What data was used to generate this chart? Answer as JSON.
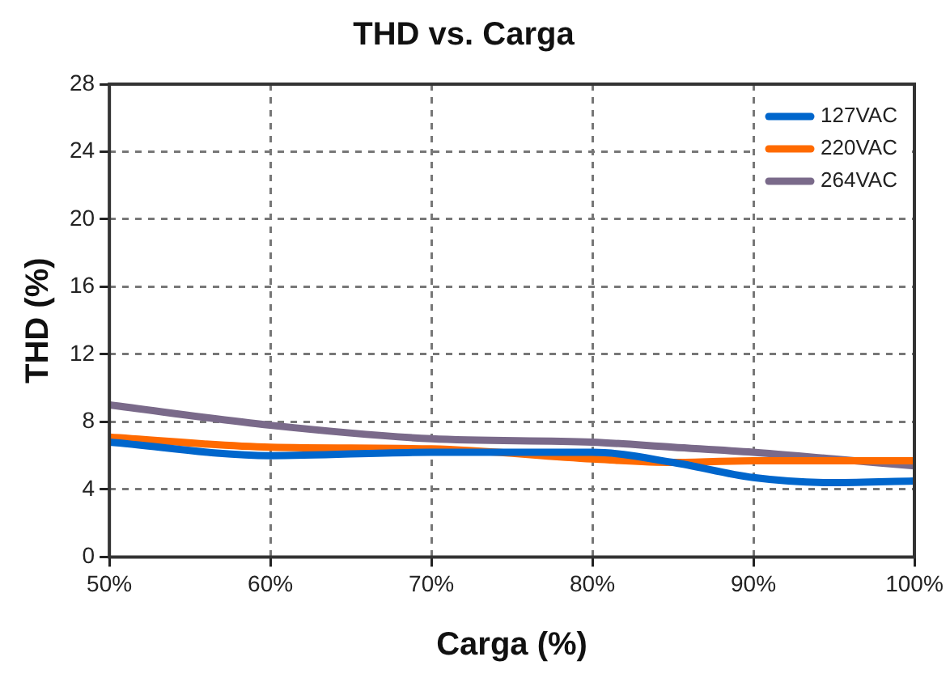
{
  "chart_data": {
    "type": "line",
    "title": "THD vs. Carga",
    "xlabel": "Carga (%)",
    "ylabel": "THD (%)",
    "x": [
      50,
      60,
      70,
      80,
      85,
      90,
      95,
      100
    ],
    "series": [
      {
        "name": "127VAC",
        "color": "#0066cc",
        "values": [
          6.8,
          6.0,
          6.2,
          6.2,
          5.6,
          4.7,
          4.4,
          4.5
        ]
      },
      {
        "name": "220VAC",
        "color": "#ff6a00",
        "values": [
          7.1,
          6.5,
          6.4,
          5.8,
          5.6,
          5.7,
          5.7,
          5.7
        ]
      },
      {
        "name": "264VAC",
        "color": "#7a6a8a",
        "values": [
          9.0,
          7.8,
          7.0,
          6.8,
          6.5,
          6.2,
          5.8,
          5.4
        ]
      }
    ],
    "xlim": [
      50,
      100
    ],
    "xticks": [
      {
        "value": 50,
        "label": "50%"
      },
      {
        "value": 60,
        "label": "60%"
      },
      {
        "value": 70,
        "label": "70%"
      },
      {
        "value": 80,
        "label": "80%"
      },
      {
        "value": 90,
        "label": "90%"
      },
      {
        "value": 100,
        "label": "100%"
      }
    ],
    "ylim": [
      0,
      28
    ],
    "yticks": [
      0,
      4,
      8,
      12,
      16,
      20,
      24,
      28
    ],
    "grid": true,
    "legend": "top right",
    "marker": "none",
    "line_style": "solid"
  }
}
